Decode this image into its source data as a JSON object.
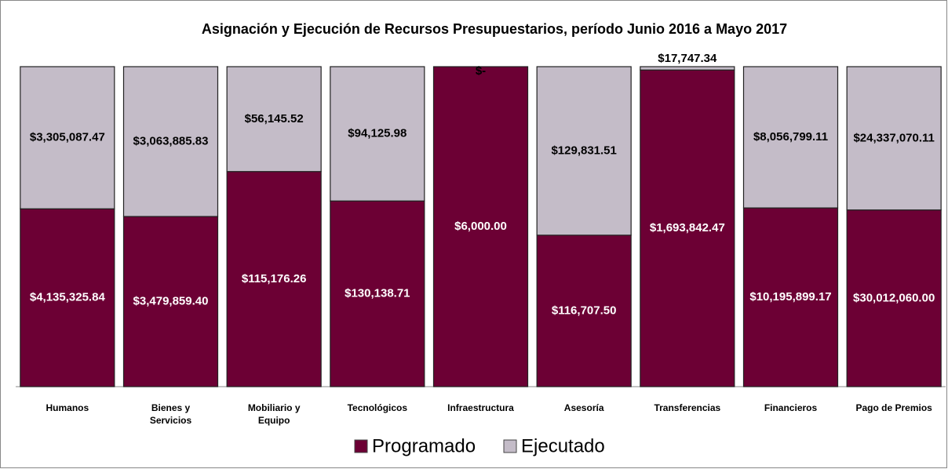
{
  "chart_data": {
    "type": "bar",
    "stacking": "percent",
    "title": "Asignación y Ejecución de Recursos Presupuestarios, período Junio 2016 a Mayo 2017",
    "categories": [
      "Humanos",
      "Bienes y Servicios",
      "Mobiliario y Equipo",
      "Tecnológicos",
      "Infraestructura",
      "Asesoría",
      "Transferencias",
      "Financieros",
      "Pago de Premios"
    ],
    "series": [
      {
        "name": "Programado",
        "color": "#6c0034",
        "values": [
          4135325.84,
          3479859.4,
          115176.26,
          130138.71,
          6000.0,
          116707.5,
          1693842.47,
          10195899.17,
          30012060.0
        ],
        "value_labels": [
          "$4,135,325.84",
          "$3,479,859.40",
          "$115,176.26",
          "$130,138.71",
          "$6,000.00",
          "$116,707.50",
          "$1,693,842.47",
          "$10,195,899.17",
          "$30,012,060.00"
        ]
      },
      {
        "name": "Ejecutado",
        "color": "#c4bcc8",
        "values": [
          3305087.47,
          3063885.83,
          56145.52,
          94125.98,
          0,
          129831.51,
          17747.34,
          8056799.11,
          24337070.11
        ],
        "value_labels": [
          "$3,305,087.47",
          "$3,063,885.83",
          "$56,145.52",
          "$94,125.98",
          "$-",
          "$129,831.51",
          "$17,747.34",
          "$8,056,799.11",
          "$24,337,070.11"
        ]
      }
    ],
    "legend": "bottom"
  }
}
